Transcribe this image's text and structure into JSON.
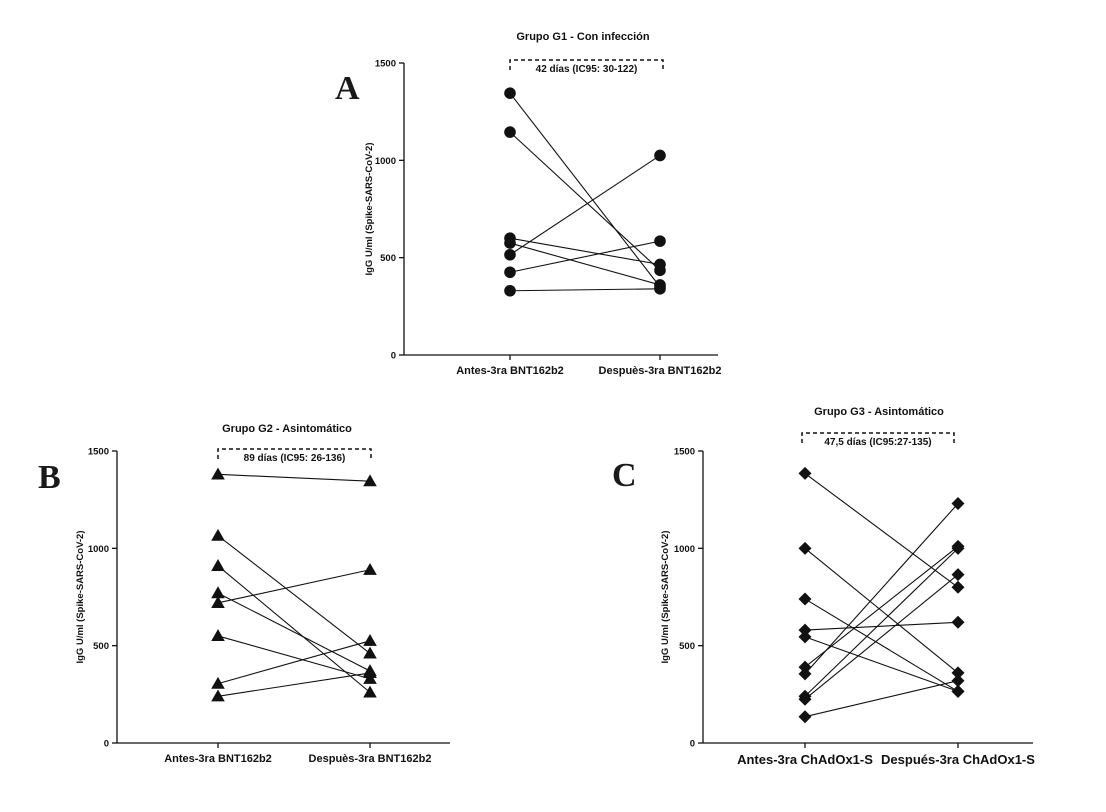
{
  "chart_data": [
    {
      "panel": "A",
      "type": "line",
      "marker": "circle",
      "title": "Grupo G1 - Con infección",
      "ylabel": "IgG U/ml (Spike-SARS-CoV-2)",
      "categories": [
        "Antes-3ra BNT162b2",
        "Despuès-3ra BNT162b2"
      ],
      "ylim": [
        0,
        1500
      ],
      "yticks": [
        0,
        500,
        1000,
        1500
      ],
      "annotation": "42 días (IC95: 30-122)",
      "pairs": [
        [
          1345,
          350
        ],
        [
          1145,
          435
        ],
        [
          600,
          465
        ],
        [
          575,
          360
        ],
        [
          515,
          1025
        ],
        [
          425,
          585
        ],
        [
          330,
          340
        ]
      ]
    },
    {
      "panel": "B",
      "type": "line",
      "marker": "triangle",
      "title": "Grupo G2 - Asintomático",
      "ylabel": "IgG U/ml (Spike-SARS-CoV-2)",
      "categories": [
        "Antes-3ra BNT162b2",
        "Despuès-3ra BNT162b2"
      ],
      "ylim": [
        0,
        1500
      ],
      "yticks": [
        0,
        500,
        1000,
        1500
      ],
      "annotation": "89 días (IC95: 26-136)",
      "pairs": [
        [
          1380,
          1345
        ],
        [
          1065,
          460
        ],
        [
          910,
          260
        ],
        [
          770,
          370
        ],
        [
          720,
          890
        ],
        [
          550,
          330
        ],
        [
          305,
          525
        ],
        [
          240,
          360
        ]
      ]
    },
    {
      "panel": "C",
      "type": "line",
      "marker": "diamond",
      "title": "Grupo G3 - Asintomático",
      "ylabel": "IgG U/ml (Spike-SARS-CoV-2)",
      "categories": [
        "Antes-3ra ChAdOx1-S",
        "Después-3ra ChAdOx1-S"
      ],
      "ylim": [
        0,
        1500
      ],
      "yticks": [
        0,
        500,
        1000,
        1500
      ],
      "annotation": "47,5 días (IC95:27-135)",
      "pairs": [
        [
          1385,
          800
        ],
        [
          1000,
          360
        ],
        [
          740,
          265
        ],
        [
          580,
          620
        ],
        [
          545,
          265
        ],
        [
          390,
          1010
        ],
        [
          355,
          1230
        ],
        [
          240,
          1000
        ],
        [
          225,
          865
        ],
        [
          135,
          320
        ]
      ]
    }
  ]
}
